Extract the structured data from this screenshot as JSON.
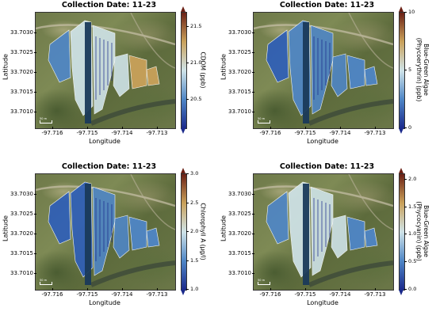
{
  "panels": [
    {
      "title": "Collection Date: 11-23",
      "xlabel": "Longitude",
      "ylabel": "Latitude",
      "xticks": [
        "-97.716",
        "-97.715",
        "-97.714",
        "-97.713"
      ],
      "yticks": [
        "33.7030",
        "33.7025",
        "33.7020",
        "33.7015",
        "33.7010"
      ],
      "colorbar_label": [
        "CDOM (ppb)"
      ],
      "colorbar_ticks": [
        "21.5",
        "21.0",
        "20.5"
      ],
      "colorbar_range": [
        20.1,
        21.7
      ],
      "colormap": "sky",
      "scale_label": "50 m"
    },
    {
      "title": "Collection Date: 11-23",
      "xlabel": "Longitude",
      "ylabel": "Latitude",
      "xticks": [
        "-97.716",
        "-97.715",
        "-97.714",
        "-97.713"
      ],
      "yticks": [
        "33.7030",
        "33.7025",
        "33.7020",
        "33.7015",
        "33.7010"
      ],
      "colorbar_label": [
        "Blue-Green Algae",
        "(Phycoerythrin) (ppb)"
      ],
      "colorbar_ticks": [
        "10",
        "5",
        "0"
      ],
      "colorbar_range": [
        0,
        10
      ],
      "colormap": "sky",
      "scale_label": "50 m"
    },
    {
      "title": "Collection Date: 11-23",
      "xlabel": "Longitude",
      "ylabel": "Latitude",
      "xticks": [
        "-97.716",
        "-97.715",
        "-97.714",
        "-97.713"
      ],
      "yticks": [
        "33.7030",
        "33.7025",
        "33.7020",
        "33.7015",
        "33.7010"
      ],
      "colorbar_label": [
        "Chlorophyll A (µg/l)"
      ],
      "colorbar_ticks": [
        "3.0",
        "2.5",
        "2.0",
        "1.5",
        "1.0"
      ],
      "colorbar_range": [
        1.0,
        3.0
      ],
      "colormap": "sky",
      "scale_label": "50 m"
    },
    {
      "title": "Collection Date: 11-23",
      "xlabel": "Longitude",
      "ylabel": "Latitude",
      "xticks": [
        "-97.716",
        "-97.715",
        "-97.714",
        "-97.713"
      ],
      "yticks": [
        "33.7030",
        "33.7025",
        "33.7020",
        "33.7015",
        "33.7010"
      ],
      "colorbar_label": [
        "Blue-Green Algae",
        "(Phycocyanin) (ppb)"
      ],
      "colorbar_ticks": [
        "2.0",
        "1.5",
        "1.0",
        "0.5",
        "0.0"
      ],
      "colorbar_range": [
        0.0,
        2.1
      ],
      "colormap": "sky",
      "scale_label": "50 m"
    }
  ],
  "chart_data": [
    {
      "type": "heatmap",
      "title": "Collection Date: 11-23",
      "xlabel": "Longitude",
      "ylabel": "Latitude",
      "colorbar_label": "CDOM (ppb)",
      "clim": [
        20.1,
        21.7
      ],
      "xlim": [
        -97.7165,
        -97.7125
      ],
      "ylim": [
        33.7008,
        33.7033
      ]
    },
    {
      "type": "heatmap",
      "title": "Collection Date: 11-23",
      "xlabel": "Longitude",
      "ylabel": "Latitude",
      "colorbar_label": "Blue-Green Algae (Phycoerythrin) (ppb)",
      "clim": [
        0,
        10
      ],
      "xlim": [
        -97.7165,
        -97.7125
      ],
      "ylim": [
        33.7008,
        33.7033
      ]
    },
    {
      "type": "heatmap",
      "title": "Collection Date: 11-23",
      "xlabel": "Longitude",
      "ylabel": "Latitude",
      "colorbar_label": "Chlorophyll A (µg/l)",
      "clim": [
        1.0,
        3.0
      ],
      "xlim": [
        -97.7165,
        -97.7125
      ],
      "ylim": [
        33.7008,
        33.7033
      ]
    },
    {
      "type": "heatmap",
      "title": "Collection Date: 11-23",
      "xlabel": "Longitude",
      "ylabel": "Latitude",
      "colorbar_label": "Blue-Green Algae (Phycocyanin) (ppb)",
      "clim": [
        0.0,
        2.1
      ],
      "xlim": [
        -97.7165,
        -97.7125
      ],
      "ylim": [
        33.7008,
        33.7033
      ]
    }
  ],
  "colors": {
    "cmap_low": "#1b2a8c",
    "cmap_mid_low": "#4f86c6",
    "cmap_mid": "#cfe3e8",
    "cmap_mid_high": "#c9a15a",
    "cmap_high": "#6b2015",
    "water_fill": "#2f5fb8",
    "channel_fill": "#1a3a5a"
  }
}
